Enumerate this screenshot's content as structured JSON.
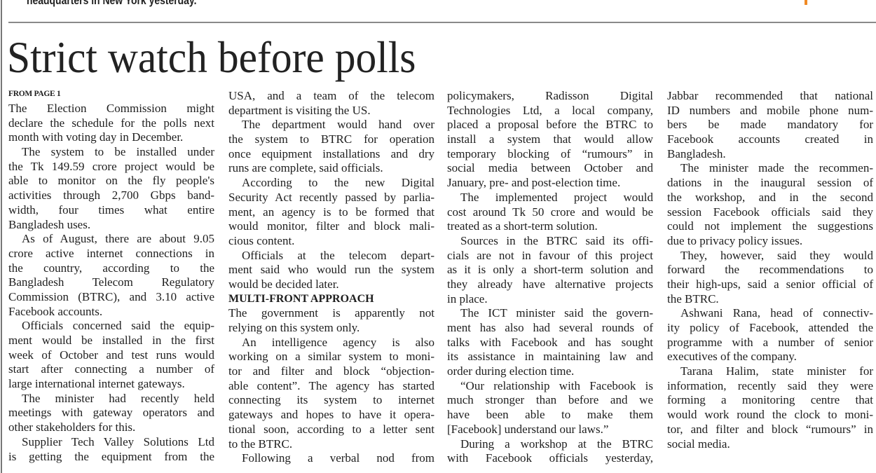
{
  "top_snippet": "headquarters in New York yesterday.",
  "headline": "Strict watch before polls",
  "kicker": "FROM PAGE 1",
  "columns": [
    {
      "paragraphs": [
        {
          "continued": true,
          "lines": [
            "The Election Commission might",
            "declare the schedule for the polls next",
            "month with voting day in December."
          ]
        },
        {
          "lines": [
            "The system to be installed under",
            "the Tk 149.59 crore project would be",
            "able to monitor on the fly people's",
            "activities through 2,700 Gbps band-",
            "width, four times what entire",
            "Bangladesh uses."
          ]
        },
        {
          "lines": [
            "As of August, there are about 9.05",
            "crore active internet connections in",
            "the country, according to the",
            "Bangladesh Telecom Regulatory",
            "Commission (BTRC), and 3.10 active",
            "Facebook accounts."
          ]
        },
        {
          "lines": [
            "Officials concerned said the equip-",
            "ment would be installed in the first",
            "week of October and test runs would",
            "start after connecting a number of",
            "large international internet gateways."
          ]
        },
        {
          "lines": [
            "The minister had recently held",
            "meetings with gateway operators and",
            "other stakeholders for this."
          ]
        },
        {
          "continues": true,
          "lines": [
            "Supplier Tech Valley Solutions Ltd",
            "is getting the equipment from the"
          ]
        }
      ]
    },
    {
      "paragraphs": [
        {
          "continued": true,
          "lines": [
            "USA, and a team of the telecom",
            "department is visiting the US."
          ]
        },
        {
          "lines": [
            "The department would hand over",
            "the system to BTRC for operation",
            "once equipment installations and dry",
            "runs are complete, said officials."
          ]
        },
        {
          "lines": [
            "According to the new Digital",
            "Security Act recently passed by parlia-",
            "ment, an agency is to be formed that",
            "would monitor, filter and block mali-",
            "cious content."
          ]
        },
        {
          "lines": [
            "Officials at the telecom depart-",
            "ment said who would run the system",
            "would be decided later."
          ]
        },
        {
          "subhead": "MULTI-FRONT APPROACH"
        },
        {
          "continued": true,
          "lines": [
            "The government is apparently not",
            "relying on this system only."
          ]
        },
        {
          "lines": [
            "An intelligence agency is also",
            "working on a similar system to moni-",
            "tor and filter and block “objection-",
            "able content”. The agency has started",
            "connecting its system to internet",
            "gateways and hopes to have it opera-",
            "tional soon, according to a letter sent",
            "to the BTRC."
          ]
        },
        {
          "continues": true,
          "lines": [
            "Following a verbal nod from"
          ]
        }
      ]
    },
    {
      "paragraphs": [
        {
          "continued": true,
          "lines": [
            "policymakers, Radisson Digital",
            "Technologies Ltd, a local company,",
            "placed a proposal before the BTRC to",
            "install a system that would allow",
            "temporary blocking of “rumours” in",
            "social media between October and",
            "January, pre- and post-election time."
          ]
        },
        {
          "lines": [
            "The implemented project would",
            "cost around Tk 50 crore and would be",
            "treated as a short-term solution."
          ]
        },
        {
          "lines": [
            "Sources in the BTRC said its offi-",
            "cials are not in favour of this project",
            "as it is only a short-term solution and",
            "they already have alternative projects",
            "in place."
          ]
        },
        {
          "lines": [
            "The ICT minister said the govern-",
            "ment has also had several rounds of",
            "talks with Facebook and has sought",
            "its assistance in maintaining law and",
            "order during election time."
          ]
        },
        {
          "lines": [
            "“Our relationship with Facebook is",
            "much stronger than before and we",
            "have been able to make them",
            "[Facebook] understand our laws.”"
          ]
        },
        {
          "continues": true,
          "lines": [
            "During a workshop at the BTRC",
            "with Facebook officials yesterday,"
          ]
        }
      ]
    },
    {
      "paragraphs": [
        {
          "continued": true,
          "lines": [
            "Jabbar recommended that national",
            "ID numbers and mobile phone num-",
            "bers be made mandatory for",
            "Facebook accounts created in",
            "Bangladesh."
          ]
        },
        {
          "lines": [
            "The minister made the recommen-",
            "dations in the inaugural session of",
            "the workshop, and in the second",
            "session Facebook officials said they",
            "could not implement the suggestions",
            "due to privacy policy issues."
          ]
        },
        {
          "lines": [
            "They, however, said they would",
            "forward the recommendations to",
            "their high-ups, said a senior official of",
            "the BTRC."
          ]
        },
        {
          "lines": [
            "Ashwani Rana, head of connectiv-",
            "ity policy of Facebook, attended the",
            "programme with a number of senior",
            "executives of the company."
          ]
        },
        {
          "lines": [
            "Tarana Halim, state minister for",
            "information, recently said they were",
            "forming a monitoring centre that",
            "would work round the clock to moni-",
            "tor, and filter and block “rumours” in",
            "social media."
          ]
        }
      ]
    }
  ]
}
